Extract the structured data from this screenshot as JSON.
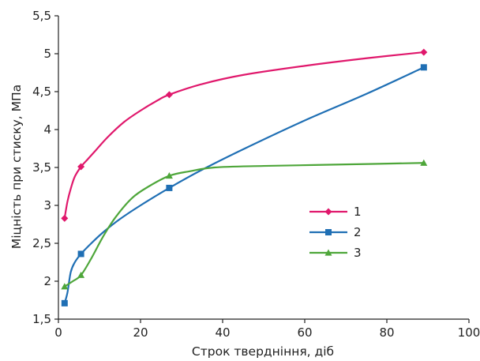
{
  "chart_data": {
    "type": "line",
    "xlabel": "Строк тверднiння, дiб",
    "ylabel": "Міцність при стиску, МПа",
    "xlim": [
      0,
      100
    ],
    "ylim": [
      1.5,
      5.5
    ],
    "x_ticks": [
      "0",
      "20",
      "40",
      "60",
      "80",
      "100"
    ],
    "y_ticks": [
      "1,5",
      "2",
      "2,5",
      "3",
      "3,5",
      "4",
      "4,5",
      "5",
      "5,5"
    ],
    "grid": false,
    "legend_position": "center-right",
    "series": [
      {
        "name": "1",
        "color": "#e0186c",
        "marker": "diamond",
        "points": [
          [
            1.5,
            2.83
          ],
          [
            5.5,
            3.51
          ],
          [
            27,
            4.46
          ],
          [
            89,
            5.02
          ]
        ],
        "curve": [
          [
            1.5,
            2.83
          ],
          [
            2.2,
            3.05
          ],
          [
            3,
            3.22
          ],
          [
            4,
            3.38
          ],
          [
            5.5,
            3.51
          ],
          [
            7,
            3.6
          ],
          [
            9,
            3.72
          ],
          [
            12,
            3.9
          ],
          [
            16,
            4.1
          ],
          [
            20,
            4.25
          ],
          [
            24,
            4.38
          ],
          [
            27,
            4.46
          ],
          [
            35,
            4.6
          ],
          [
            45,
            4.72
          ],
          [
            60,
            4.84
          ],
          [
            75,
            4.94
          ],
          [
            89,
            5.02
          ]
        ]
      },
      {
        "name": "2",
        "color": "#1f6fb4",
        "marker": "square",
        "points": [
          [
            1.5,
            1.71
          ],
          [
            5.5,
            2.36
          ],
          [
            27,
            3.23
          ],
          [
            89,
            4.82
          ]
        ],
        "curve": [
          [
            1.5,
            1.71
          ],
          [
            2.2,
            1.85
          ],
          [
            3,
            2.12
          ],
          [
            4,
            2.25
          ],
          [
            5.5,
            2.36
          ],
          [
            8,
            2.5
          ],
          [
            11,
            2.65
          ],
          [
            15,
            2.82
          ],
          [
            20,
            3.0
          ],
          [
            27,
            3.23
          ],
          [
            35,
            3.47
          ],
          [
            45,
            3.74
          ],
          [
            60,
            4.12
          ],
          [
            75,
            4.47
          ],
          [
            89,
            4.82
          ]
        ]
      },
      {
        "name": "3",
        "color": "#4ea63a",
        "marker": "triangle",
        "points": [
          [
            1.5,
            1.93
          ],
          [
            5.5,
            2.08
          ],
          [
            27,
            3.39
          ],
          [
            89,
            3.56
          ]
        ],
        "curve": [
          [
            1.5,
            1.93
          ],
          [
            3.5,
            2.0
          ],
          [
            5.5,
            2.08
          ],
          [
            8,
            2.3
          ],
          [
            11,
            2.6
          ],
          [
            14,
            2.85
          ],
          [
            18,
            3.1
          ],
          [
            22,
            3.25
          ],
          [
            27,
            3.39
          ],
          [
            32,
            3.45
          ],
          [
            38,
            3.5
          ],
          [
            50,
            3.52
          ],
          [
            70,
            3.54
          ],
          [
            89,
            3.56
          ]
        ]
      }
    ]
  }
}
